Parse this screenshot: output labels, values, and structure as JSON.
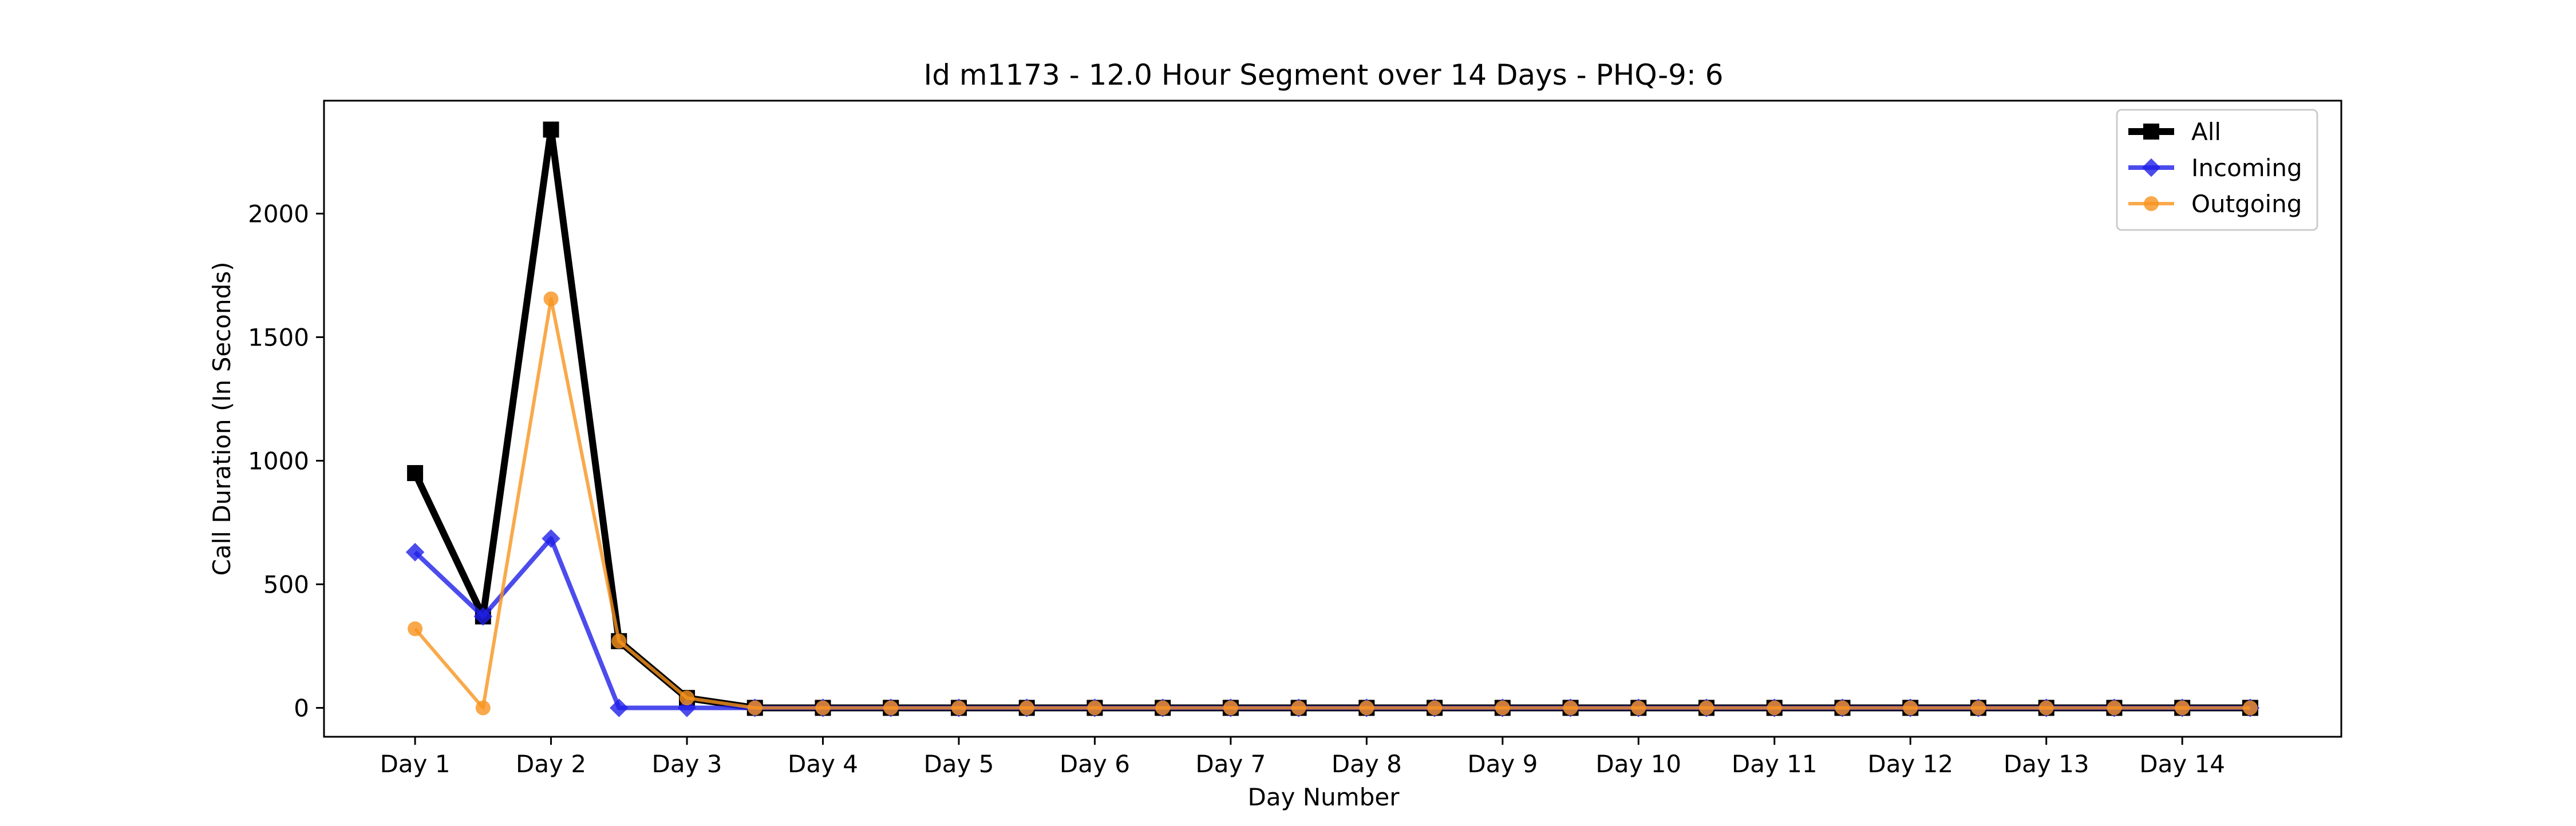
{
  "chart_data": {
    "type": "line",
    "title": "Id m1173 - 12.0 Hour Segment over 14 Days - PHQ-9: 6",
    "xlabel": "Day Number",
    "ylabel": "Call Duration (In Seconds)",
    "x": [
      1,
      1.5,
      2,
      2.5,
      3,
      3.5,
      4,
      4.5,
      5,
      5.5,
      6,
      6.5,
      7,
      7.5,
      8,
      8.5,
      9,
      9.5,
      10,
      10.5,
      11,
      11.5,
      12,
      12.5,
      13,
      13.5,
      14,
      14.5
    ],
    "x_ticks": [
      1,
      2,
      3,
      4,
      5,
      6,
      7,
      8,
      9,
      10,
      11,
      12,
      13,
      14
    ],
    "x_tick_labels": [
      "Day 1",
      "Day 2",
      "Day 3",
      "Day 4",
      "Day 5",
      "Day 6",
      "Day 7",
      "Day 8",
      "Day 9",
      "Day 10",
      "Day 11",
      "Day 12",
      "Day 13",
      "Day 14"
    ],
    "xlim": [
      0.33,
      15.17
    ],
    "y_ticks": [
      0,
      500,
      1000,
      1500,
      2000
    ],
    "y_tick_labels": [
      "0",
      "500",
      "1000",
      "1500",
      "2000"
    ],
    "ylim": [
      -117,
      2457
    ],
    "grid": false,
    "legend_position": "top-right",
    "series": [
      {
        "name": "All",
        "color": "#000000",
        "marker": "square",
        "values": [
          950,
          370,
          2340,
          270,
          40,
          0,
          0,
          0,
          0,
          0,
          0,
          0,
          0,
          0,
          0,
          0,
          0,
          0,
          0,
          0,
          0,
          0,
          0,
          0,
          0,
          0,
          0,
          0
        ]
      },
      {
        "name": "Incoming",
        "color": "#1f1fe8",
        "marker": "diamond",
        "values": [
          630,
          370,
          685,
          0,
          0,
          0,
          0,
          0,
          0,
          0,
          0,
          0,
          0,
          0,
          0,
          0,
          0,
          0,
          0,
          0,
          0,
          0,
          0,
          0,
          0,
          0,
          0,
          0
        ]
      },
      {
        "name": "Outgoing",
        "color": "#f7931e",
        "marker": "circle",
        "values": [
          320,
          0,
          1655,
          270,
          40,
          0,
          0,
          0,
          0,
          0,
          0,
          0,
          0,
          0,
          0,
          0,
          0,
          0,
          0,
          0,
          0,
          0,
          0,
          0,
          0,
          0,
          0,
          0
        ]
      }
    ]
  }
}
